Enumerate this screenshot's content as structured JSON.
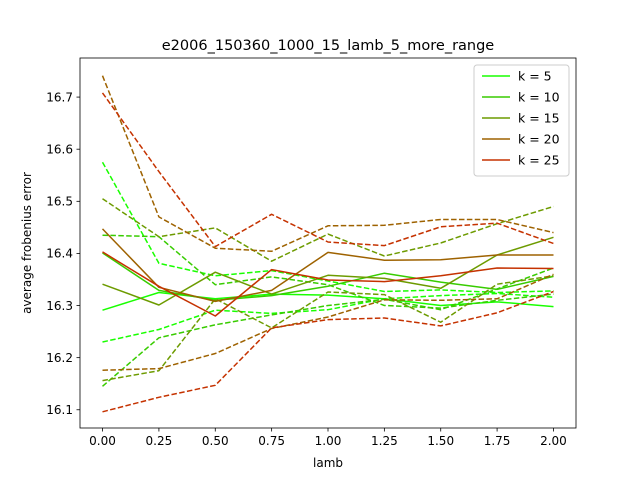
{
  "chart_data": {
    "type": "line",
    "title": "e2006_150360_1000_15_lamb_5_more_range",
    "xlabel": "lamb",
    "ylabel": "average frobenius error",
    "x": [
      0.0,
      0.25,
      0.5,
      0.75,
      1.0,
      1.25,
      1.5,
      1.75,
      2.0
    ],
    "xlim": [
      -0.1,
      2.1
    ],
    "ylim": [
      16.065,
      16.775
    ],
    "xticks": [
      0.0,
      0.25,
      0.5,
      0.75,
      1.0,
      1.25,
      1.5,
      1.75,
      2.0
    ],
    "xtick_labels": [
      "0.00",
      "0.25",
      "0.50",
      "0.75",
      "1.00",
      "1.25",
      "1.50",
      "1.75",
      "2.00"
    ],
    "yticks": [
      16.1,
      16.2,
      16.3,
      16.4,
      16.5,
      16.6,
      16.7
    ],
    "ytick_labels": [
      "16.1",
      "16.2",
      "16.3",
      "16.4",
      "16.5",
      "16.6",
      "16.7"
    ],
    "legend_position": "top-right",
    "grid": false,
    "series": [
      {
        "name": "k = 5",
        "color": "#19ff00",
        "style": "solid",
        "values": [
          16.291,
          16.325,
          16.313,
          16.322,
          16.32,
          16.313,
          16.3,
          16.307,
          16.298
        ]
      },
      {
        "color": "#19ff00",
        "style": "dashed",
        "values": [
          16.575,
          16.381,
          16.357,
          16.367,
          16.347,
          16.327,
          16.33,
          16.325,
          16.328
        ]
      },
      {
        "color": "#19ff00",
        "style": "dashed",
        "values": [
          16.23,
          16.254,
          16.291,
          16.285,
          16.292,
          16.313,
          16.319,
          16.323,
          16.316
        ]
      },
      {
        "name": "k = 10",
        "color": "#38cc00",
        "style": "solid",
        "values": [
          16.401,
          16.329,
          16.31,
          16.319,
          16.337,
          16.362,
          16.345,
          16.331,
          16.356
        ]
      },
      {
        "color": "#38cc00",
        "style": "dashed",
        "values": [
          16.435,
          16.432,
          16.34,
          16.355,
          16.34,
          16.3,
          16.295,
          16.31,
          16.322
        ]
      },
      {
        "color": "#38cc00",
        "style": "dashed",
        "values": [
          16.145,
          16.238,
          16.263,
          16.282,
          16.3,
          16.312,
          16.292,
          16.332,
          16.372
        ]
      },
      {
        "name": "k = 15",
        "color": "#6d9b00",
        "style": "solid",
        "values": [
          16.341,
          16.301,
          16.364,
          16.322,
          16.358,
          16.352,
          16.333,
          16.397,
          16.431
        ]
      },
      {
        "color": "#6d9b00",
        "style": "dashed",
        "values": [
          16.505,
          16.432,
          16.449,
          16.385,
          16.437,
          16.395,
          16.42,
          16.457,
          16.49
        ]
      },
      {
        "color": "#6d9b00",
        "style": "dashed",
        "values": [
          16.156,
          16.175,
          16.313,
          16.257,
          16.326,
          16.321,
          16.268,
          16.341,
          16.357
        ]
      },
      {
        "name": "k = 20",
        "color": "#9e6200",
        "style": "solid",
        "values": [
          16.447,
          16.335,
          16.308,
          16.329,
          16.402,
          16.387,
          16.388,
          16.397,
          16.397
        ]
      },
      {
        "color": "#9e6200",
        "style": "dashed",
        "values": [
          16.741,
          16.47,
          16.41,
          16.404,
          16.453,
          16.454,
          16.465,
          16.465,
          16.44
        ]
      },
      {
        "color": "#9e6200",
        "style": "dashed",
        "values": [
          16.176,
          16.179,
          16.208,
          16.256,
          16.278,
          16.311,
          16.31,
          16.313,
          16.36
        ]
      },
      {
        "name": "k = 25",
        "color": "#c53200",
        "style": "solid",
        "values": [
          16.403,
          16.337,
          16.28,
          16.369,
          16.349,
          16.346,
          16.357,
          16.372,
          16.371
        ]
      },
      {
        "color": "#c53200",
        "style": "dashed",
        "values": [
          16.708,
          16.557,
          16.413,
          16.475,
          16.422,
          16.415,
          16.451,
          16.458,
          16.419
        ]
      },
      {
        "color": "#c53200",
        "style": "dashed",
        "values": [
          16.096,
          16.124,
          16.147,
          16.257,
          16.273,
          16.276,
          16.261,
          16.286,
          16.327
        ]
      }
    ]
  }
}
